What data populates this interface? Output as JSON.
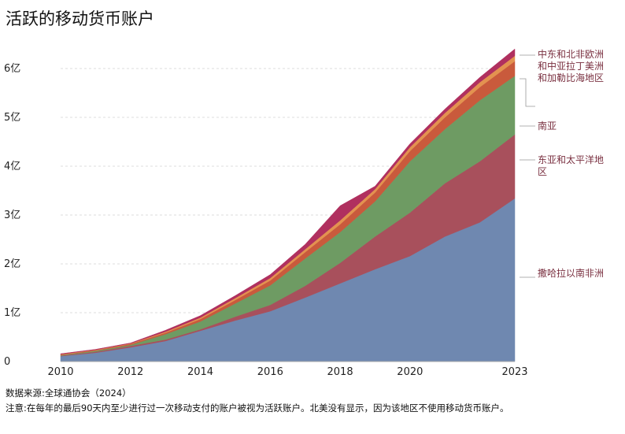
{
  "chart_data": {
    "type": "stacked_area",
    "title": "活跃的移动货币账户",
    "x": [
      2010,
      2011,
      2012,
      2013,
      2014,
      2015,
      2016,
      2017,
      2018,
      2019,
      2020,
      2021,
      2022,
      2023
    ],
    "xlim": [
      2010,
      2023
    ],
    "xticks": [
      2010,
      2012,
      2014,
      2016,
      2018,
      2020,
      2023
    ],
    "ylim": [
      0,
      6.5
    ],
    "yticks": [
      0,
      {
        "value": 1,
        "label": "1亿"
      },
      {
        "value": 2,
        "label": "2亿"
      },
      {
        "value": 3,
        "label": "3亿"
      },
      {
        "value": 4,
        "label": "4亿"
      },
      {
        "value": 5,
        "label": "5亿"
      },
      {
        "value": 6,
        "label": "6亿"
      }
    ],
    "grid": true,
    "series": [
      {
        "name": "撒哈拉以南非洲",
        "color": "#6f88b0",
        "values": [
          0.11,
          0.18,
          0.29,
          0.42,
          0.63,
          0.84,
          1.03,
          1.31,
          1.6,
          1.89,
          2.16,
          2.56,
          2.85,
          3.34
        ]
      },
      {
        "name": "东亚和太平洋地区",
        "color": "#a8505c",
        "values": [
          0.01,
          0.02,
          0.03,
          0.03,
          0.03,
          0.08,
          0.13,
          0.24,
          0.42,
          0.67,
          0.89,
          1.09,
          1.25,
          1.31
        ]
      },
      {
        "name": "南亚",
        "color": "#6e9b63",
        "values": [
          0.01,
          0.02,
          0.02,
          0.11,
          0.16,
          0.27,
          0.4,
          0.56,
          0.63,
          0.72,
          1.05,
          1.11,
          1.25,
          1.2
        ]
      },
      {
        "name": "拉丁美洲和加勒比海地区",
        "color": "#c95a3c",
        "values": [
          0.01,
          0.01,
          0.02,
          0.03,
          0.05,
          0.07,
          0.1,
          0.13,
          0.16,
          0.18,
          0.21,
          0.24,
          0.27,
          0.3
        ]
      },
      {
        "name": "欧洲和中亚",
        "color": "#e39250",
        "values": [
          0.01,
          0.01,
          0.01,
          0.02,
          0.03,
          0.04,
          0.05,
          0.06,
          0.08,
          0.07,
          0.08,
          0.09,
          0.1,
          0.11
        ]
      },
      {
        "name": "中东和北非",
        "color": "#b0305f",
        "values": [
          0.01,
          0.01,
          0.01,
          0.03,
          0.04,
          0.05,
          0.07,
          0.1,
          0.3,
          0.06,
          0.07,
          0.08,
          0.1,
          0.14
        ]
      }
    ],
    "source": "数据来源:全球通协会（2024）",
    "note": "注意:在每年的最后90天内至少进行过一次移动支付的账户被视为活跃账户。北美没有显示，因为该地区不使用移动货币账户。"
  }
}
